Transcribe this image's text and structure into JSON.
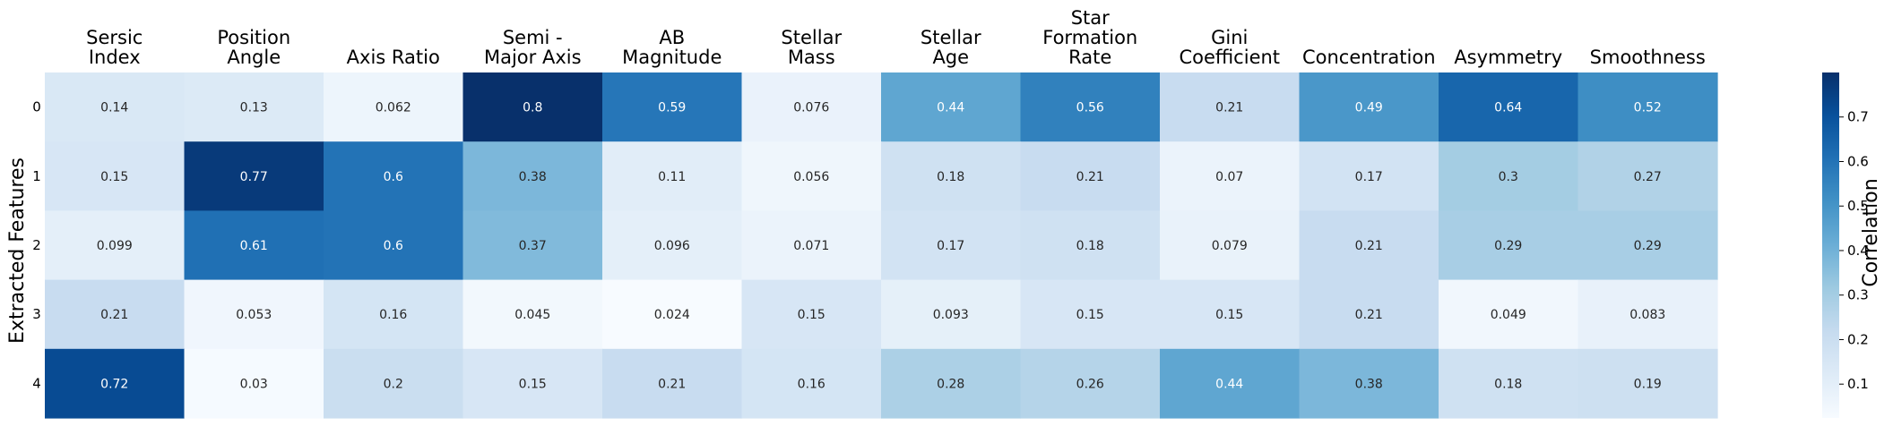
{
  "chart_data": {
    "type": "heatmap",
    "columns": [
      [
        "Sersic",
        "Index"
      ],
      [
        "Position",
        "Angle"
      ],
      [
        "Axis Ratio"
      ],
      [
        "Semi -",
        "Major Axis"
      ],
      [
        "AB",
        "Magnitude"
      ],
      [
        "Stellar",
        "Mass"
      ],
      [
        "Stellar",
        "Age"
      ],
      [
        "Star",
        "Formation",
        "Rate"
      ],
      [
        "Gini",
        "Coefficient"
      ],
      [
        "Concentration"
      ],
      [
        "Asymmetry"
      ],
      [
        "Smoothness"
      ]
    ],
    "rows": [
      "0",
      "1",
      "2",
      "3",
      "4"
    ],
    "values": [
      [
        0.14,
        0.13,
        0.062,
        0.8,
        0.59,
        0.076,
        0.44,
        0.56,
        0.21,
        0.49,
        0.64,
        0.52
      ],
      [
        0.15,
        0.77,
        0.6,
        0.38,
        0.11,
        0.056,
        0.18,
        0.21,
        0.07,
        0.17,
        0.3,
        0.27
      ],
      [
        0.099,
        0.61,
        0.6,
        0.37,
        0.096,
        0.071,
        0.17,
        0.18,
        0.079,
        0.21,
        0.29,
        0.29
      ],
      [
        0.21,
        0.053,
        0.16,
        0.045,
        0.024,
        0.15,
        0.093,
        0.15,
        0.15,
        0.21,
        0.049,
        0.083
      ],
      [
        0.72,
        0.03,
        0.2,
        0.15,
        0.21,
        0.16,
        0.28,
        0.26,
        0.44,
        0.38,
        0.18,
        0.19
      ]
    ],
    "cell_labels": [
      [
        "0.14",
        "0.13",
        "0.062",
        "0.8",
        "0.59",
        "0.076",
        "0.44",
        "0.56",
        "0.21",
        "0.49",
        "0.64",
        "0.52"
      ],
      [
        "0.15",
        "0.77",
        "0.6",
        "0.38",
        "0.11",
        "0.056",
        "0.18",
        "0.21",
        "0.07",
        "0.17",
        "0.3",
        "0.27"
      ],
      [
        "0.099",
        "0.61",
        "0.6",
        "0.37",
        "0.096",
        "0.071",
        "0.17",
        "0.18",
        "0.079",
        "0.21",
        "0.29",
        "0.29"
      ],
      [
        "0.21",
        "0.053",
        "0.16",
        "0.045",
        "0.024",
        "0.15",
        "0.093",
        "0.15",
        "0.15",
        "0.21",
        "0.049",
        "0.083"
      ],
      [
        "0.72",
        "0.03",
        "0.2",
        "0.15",
        "0.21",
        "0.16",
        "0.28",
        "0.26",
        "0.44",
        "0.38",
        "0.18",
        "0.19"
      ]
    ],
    "ylabel": "Extracted Features",
    "colorbar": {
      "label": "Correlation",
      "range": [
        0.024,
        0.8
      ],
      "ticks": [
        0.1,
        0.2,
        0.3,
        0.4,
        0.5,
        0.6,
        0.7
      ],
      "tick_labels": [
        "0.1",
        "0.2",
        "0.3",
        "0.4",
        "0.5",
        "0.6",
        "0.7"
      ]
    },
    "colormap": [
      "#f7fbff",
      "#deebf7",
      "#c6dbef",
      "#9ecae1",
      "#6baed6",
      "#4292c6",
      "#2171b5",
      "#08519c",
      "#08306b"
    ]
  }
}
